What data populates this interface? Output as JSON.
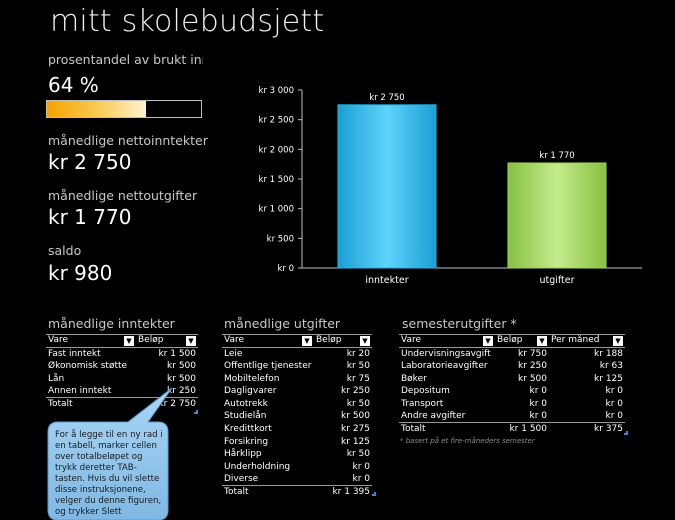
{
  "title": "mitt skolebudsjett",
  "stats": {
    "percent_label": "prosentandel av brukt inntekt",
    "percent_value": "64 %",
    "percent_fraction": 0.64,
    "income_label": "månedlige nettoinntekter",
    "income_value": "kr 2 750",
    "expense_label": "månedlige nettoutgifter",
    "expense_value": "kr 1 770",
    "balance_label": "saldo",
    "balance_value": "kr 980"
  },
  "chart_data": {
    "type": "bar",
    "categories": [
      "inntekter",
      "utgifter"
    ],
    "values": [
      2750,
      1770
    ],
    "data_labels": [
      "kr 2 750",
      "kr 1 770"
    ],
    "ylim": [
      0,
      3000
    ],
    "yticks": [
      0,
      500,
      1000,
      1500,
      2000,
      2500,
      3000
    ],
    "ytick_labels": [
      "kr   0",
      "kr   500",
      "kr 1 000",
      "kr 1 500",
      "kr 2 000",
      "kr 2 500",
      "kr 3 000"
    ],
    "colors": [
      "#22b7e8",
      "#9ed45e"
    ],
    "grid": false
  },
  "income": {
    "title": "månedlige inntekter",
    "headers": [
      "Vare",
      "Beløp"
    ],
    "rows": [
      [
        "Fast inntekt",
        "kr 1 500"
      ],
      [
        "Økonomisk støtte",
        "kr 500"
      ],
      [
        "Lån",
        "kr 500"
      ],
      [
        "Annen inntekt",
        "kr 250"
      ]
    ],
    "total_label": "Totalt",
    "total_value": "kr 2 750"
  },
  "expenses": {
    "title": "månedlige utgifter",
    "headers": [
      "Vare",
      "Beløp"
    ],
    "rows": [
      [
        "Leie",
        "kr 20"
      ],
      [
        "Offentlige tjenester",
        "kr 50"
      ],
      [
        "Mobiltelefon",
        "kr 75"
      ],
      [
        "Dagligvarer",
        "kr 250"
      ],
      [
        "Autotrekk",
        "kr 50"
      ],
      [
        "Studielån",
        "kr 500"
      ],
      [
        "Kredittkort",
        "kr 275"
      ],
      [
        "Forsikring",
        "kr 125"
      ],
      [
        "Hårklipp",
        "kr 50"
      ],
      [
        "Underholdning",
        "kr 0"
      ],
      [
        "Diverse",
        "kr 0"
      ]
    ],
    "total_label": "Totalt",
    "total_value": "kr 1 395"
  },
  "semester": {
    "title": "semesterutgifter *",
    "headers": [
      "Vare",
      "Beløp",
      "Per måned"
    ],
    "rows": [
      [
        "Undervisningsavgift",
        "kr 750",
        "kr 188"
      ],
      [
        "Laboratorieavgifter",
        "kr 250",
        "kr 63"
      ],
      [
        "Bøker",
        "kr 500",
        "kr 125"
      ],
      [
        "Depositum",
        "kr 0",
        "kr 0"
      ],
      [
        "Transport",
        "kr 0",
        "kr 0"
      ],
      [
        "Andre avgifter",
        "kr 0",
        "kr 0"
      ]
    ],
    "total_label": "Totalt",
    "total_value": "kr 1 500",
    "total_monthly": "kr 375",
    "footnote": "* basert på et fire-måneders semester"
  },
  "callout": {
    "text": "For å legge til en ny rad i en tabell, marker cellen over totalbeløpet og trykk deretter TAB-tasten. Hvis du vil slette disse instruksjonene, velger du denne figuren, og trykker Slett"
  },
  "dropdown_icon": "triangle-down"
}
